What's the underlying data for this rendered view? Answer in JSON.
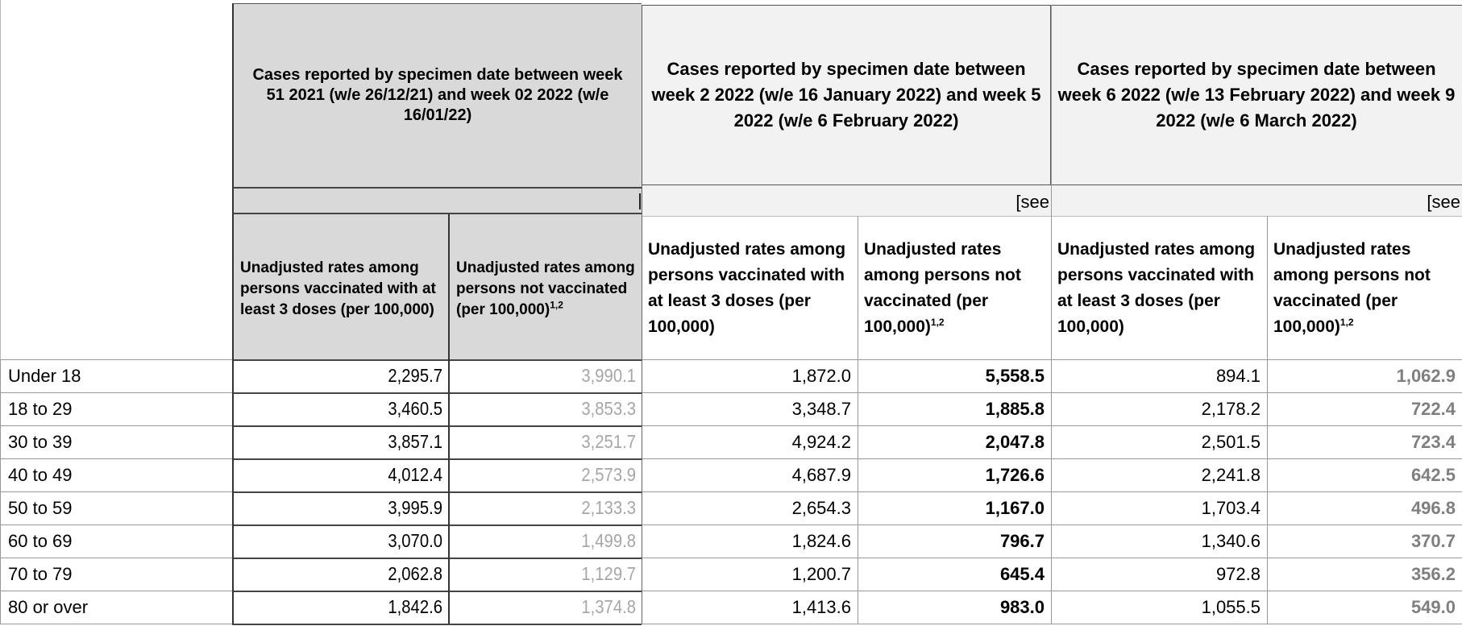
{
  "headers": {
    "period1": "Cases reported by specimen date between week 51 2021 (w/e 26/12/21) and week 02 2022 (w/e 16/01/22)",
    "period2": "Cases reported by specimen date between week 2 2022 (w/e 16 January 2022) and week 5 2022 (w/e 6 February 2022)",
    "period3": "Cases reported by specimen date between week 6 2022 (w/e 13 February 2022) and week 9 2022 (w/e 6 March 2022)",
    "see_note": "[see",
    "sub_vaccinated": "Unadjusted rates among persons vaccinated with at least 3 doses (per 100,000)",
    "sub_not_vaccinated": "Unadjusted rates among persons not vaccinated (per 100,000)",
    "sub_note_sup": "1,2"
  },
  "rows": [
    {
      "label": "Under 18",
      "p1_vax": "2,295.7",
      "p1_unvax": "3,990.1",
      "p2_vax": "1,872.0",
      "p2_unvax": "5,558.5",
      "p3_vax": "894.1",
      "p3_unvax": "1,062.9"
    },
    {
      "label": "18 to 29",
      "p1_vax": "3,460.5",
      "p1_unvax": "3,853.3",
      "p2_vax": "3,348.7",
      "p2_unvax": "1,885.8",
      "p3_vax": "2,178.2",
      "p3_unvax": "722.4"
    },
    {
      "label": "30 to 39",
      "p1_vax": "3,857.1",
      "p1_unvax": "3,251.7",
      "p2_vax": "4,924.2",
      "p2_unvax": "2,047.8",
      "p3_vax": "2,501.5",
      "p3_unvax": "723.4"
    },
    {
      "label": "40 to 49",
      "p1_vax": "4,012.4",
      "p1_unvax": "2,573.9",
      "p2_vax": "4,687.9",
      "p2_unvax": "1,726.6",
      "p3_vax": "2,241.8",
      "p3_unvax": "642.5"
    },
    {
      "label": "50 to 59",
      "p1_vax": "3,995.9",
      "p1_unvax": "2,133.3",
      "p2_vax": "2,654.3",
      "p2_unvax": "1,167.0",
      "p3_vax": "1,703.4",
      "p3_unvax": "496.8"
    },
    {
      "label": "60 to 69",
      "p1_vax": "3,070.0",
      "p1_unvax": "1,499.8",
      "p2_vax": "1,824.6",
      "p2_unvax": "796.7",
      "p3_vax": "1,340.6",
      "p3_unvax": "370.7"
    },
    {
      "label": "70 to 79",
      "p1_vax": "2,062.8",
      "p1_unvax": "1,129.7",
      "p2_vax": "1,200.7",
      "p2_unvax": "645.4",
      "p3_vax": "972.8",
      "p3_unvax": "356.2"
    },
    {
      "label": "80 or over",
      "p1_vax": "1,842.6",
      "p1_unvax": "1,374.8",
      "p2_vax": "1,413.6",
      "p2_unvax": "983.0",
      "p3_vax": "1,055.5",
      "p3_unvax": "549.0"
    }
  ]
}
